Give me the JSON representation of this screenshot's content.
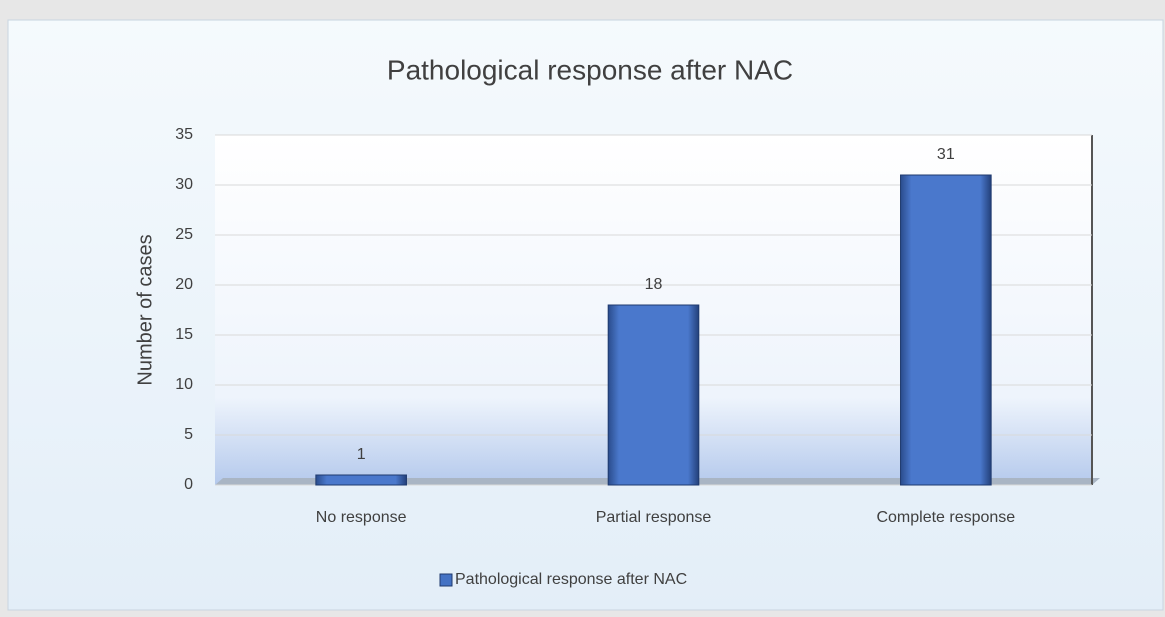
{
  "chart_data": {
    "type": "bar",
    "title": "Pathological response after NAC",
    "y_label": "Number of cases",
    "categories": [
      "No response",
      "Partial response",
      "Complete response"
    ],
    "series": [
      {
        "name": "Pathological response after NAC",
        "color": "#4472c4",
        "values": [
          1,
          18,
          31
        ]
      }
    ],
    "ylim": [
      0,
      35
    ],
    "yticks": [
      0,
      5,
      10,
      15,
      20,
      25,
      30,
      35
    ],
    "grid": true,
    "legend": "bottom"
  }
}
